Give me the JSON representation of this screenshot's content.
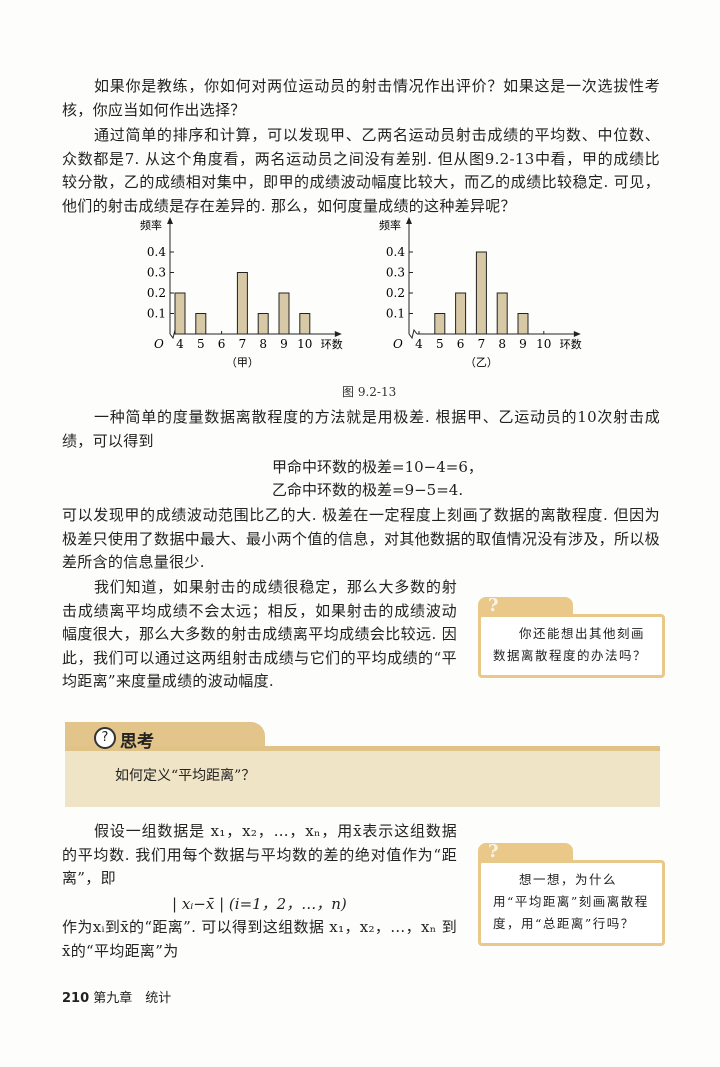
{
  "paragraphs": {
    "p1": "如果你是教练，你如何对两位运动员的射击情况作出评价？如果这是一次选拔性考核，你应当如何作出选择？",
    "p2": "通过简单的排序和计算，可以发现甲、乙两名运动员射击成绩的平均数、中位数、众数都是7. 从这个角度看，两名运动员之间没有差别. 但从图9.2-13中看，甲的成绩比较分散，乙的成绩相对集中，即甲的成绩波动幅度比较大，而乙的成绩比较稳定. 可见，他们的射击成绩是存在差异的. 那么，如何度量成绩的这种差异呢？",
    "p3": "一种简单的度量数据离散程度的方法就是用极差. 根据甲、乙运动员的10次射击成绩，可以得到",
    "formula1": "甲命中环数的极差=10−4=6，",
    "formula2": "乙命中环数的极差=9−5=4.",
    "p4": "可以发现甲的成绩波动范围比乙的大. 极差在一定程度上刻画了数据的离散程度. 但因为极差只使用了数据中最大、最小两个值的信息，对其他数据的取值情况没有涉及，所以极差所含的信息量很少.",
    "p5": "我们知道，如果射击的成绩很稳定，那么大多数的射击成绩离平均成绩不会太远；相反，如果射击的成绩波动幅度很大，那么大多数的射击成绩离平均成绩会比较远. 因此，我们可以通过这两组射击成绩与它们的平均成绩的“平均距离”来度量成绩的波动幅度.",
    "p6": "假设一组数据是 x₁，x₂，…，xₙ，用x̄表示这组数据的平均数. 我们用每个数据与平均数的差的绝对值作为“距离”，即",
    "formula3": "| xᵢ−x̄ |  (i=1，2，…，n)",
    "p7": "作为xᵢ到x̄的“距离”. 可以得到这组数据 x₁，x₂，…，xₙ 到x̄的“平均距离”为"
  },
  "figure": {
    "caption": "图 9.2-13"
  },
  "chart_data": [
    {
      "type": "bar",
      "title": "",
      "sublabel": "（甲）",
      "xlabel": "环数",
      "ylabel": "频率",
      "origin_label": "O",
      "categories": [
        "4",
        "5",
        "6",
        "7",
        "8",
        "9",
        "10"
      ],
      "values": [
        0.2,
        0.1,
        0,
        0.3,
        0.1,
        0.2,
        0.1
      ],
      "yticks": [
        "0.1",
        "0.2",
        "0.3",
        "0.4"
      ],
      "ylim": [
        0,
        0.45
      ],
      "bar_color": "#d8c9a6"
    },
    {
      "type": "bar",
      "title": "",
      "sublabel": "（乙）",
      "xlabel": "环数",
      "ylabel": "频率",
      "origin_label": "O",
      "categories": [
        "4",
        "5",
        "6",
        "7",
        "8",
        "9",
        "10"
      ],
      "values": [
        0,
        0.1,
        0.2,
        0.4,
        0.2,
        0.1,
        0
      ],
      "yticks": [
        "0.1",
        "0.2",
        "0.3",
        "0.4"
      ],
      "ylim": [
        0,
        0.45
      ],
      "bar_color": "#d8c9a6"
    }
  ],
  "side_notes": [
    {
      "icon": "question-mark-icon",
      "text": "你还能想出其他刻画数据离散程度的办法吗？"
    },
    {
      "icon": "question-mark-icon",
      "text": "想一想，为什么用“平均距离”刻画离散程度，用“总距离”行吗？"
    }
  ],
  "think": {
    "title": "思考",
    "icon": "?",
    "question": "如何定义“平均距离”？"
  },
  "footer": {
    "page_number": "210",
    "chapter": "第九章　统计"
  },
  "colors": {
    "accent": "#e3c48a",
    "band": "#efe4c6",
    "bar": "#d8c9a6"
  }
}
